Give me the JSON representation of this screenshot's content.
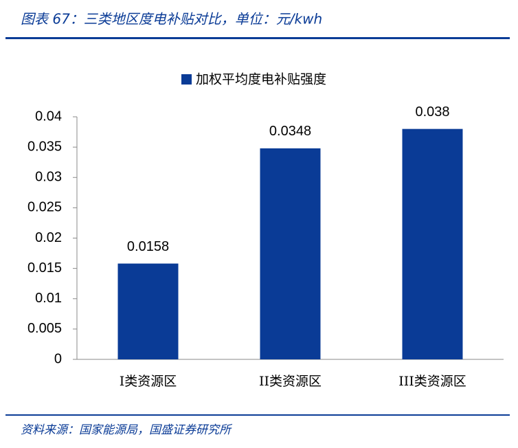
{
  "chart_data": {
    "type": "bar",
    "title": "图表 67：三类地区度电补贴对比，单位：元/kwh",
    "source": "资料来源：国家能源局，国盛证券研究所",
    "categories": [
      "I类资源区",
      "II类资源区",
      "III类资源区"
    ],
    "series": [
      {
        "name": "加权平均度电补贴强度",
        "color": "#0a3b96",
        "values": [
          0.0158,
          0.0348,
          0.038
        ]
      }
    ],
    "ylim": [
      0,
      0.04
    ],
    "yticks": [
      0,
      0.005,
      0.01,
      0.015,
      0.02,
      0.025,
      0.03,
      0.035,
      0.04
    ],
    "legend": "top",
    "grid": false
  }
}
